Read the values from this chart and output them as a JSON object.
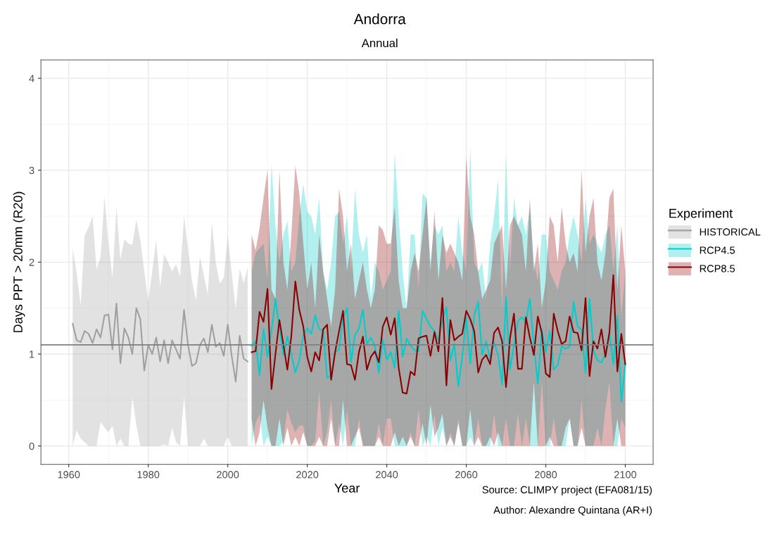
{
  "chart_data": {
    "type": "line",
    "title": "Andorra",
    "subtitle": "Annual",
    "xlabel": "Year",
    "ylabel": "Days PPT > 20mm (R20)",
    "legend_title": "Experiment",
    "legend": "right",
    "grid": true,
    "marker": "none",
    "line_style": "solid",
    "xlim": [
      1953,
      2107
    ],
    "xticks": [
      1960,
      1980,
      2000,
      2020,
      2040,
      2060,
      2080,
      2100
    ],
    "ylim": [
      -0.2,
      4.2
    ],
    "yticks": [
      0,
      1,
      2,
      3,
      4
    ],
    "ref_lines": [
      {
        "axis": "y",
        "value": 1.1,
        "color": "#7f7f7f"
      }
    ],
    "annotations": [
      "Source: CLIMPY project (EFA081/15)",
      "Author: Alexandre Quintana (AR+I)"
    ],
    "series": [
      {
        "name": "HISTORICAL",
        "color": "#a0a0a0",
        "x": [
          1961,
          1962,
          1963,
          1964,
          1965,
          1966,
          1967,
          1968,
          1969,
          1970,
          1971,
          1972,
          1973,
          1974,
          1975,
          1976,
          1977,
          1978,
          1979,
          1980,
          1981,
          1982,
          1983,
          1984,
          1985,
          1986,
          1987,
          1988,
          1989,
          1990,
          1991,
          1992,
          1993,
          1994,
          1995,
          1996,
          1997,
          1998,
          1999,
          2000,
          2001,
          2002,
          2003,
          2004,
          2005
        ],
        "values": [
          1.33,
          1.15,
          1.13,
          1.25,
          1.22,
          1.12,
          1.27,
          1.18,
          1.42,
          1.43,
          1.05,
          1.55,
          0.9,
          1.28,
          1.18,
          1.0,
          1.5,
          1.38,
          0.82,
          1.1,
          1.0,
          1.18,
          0.92,
          1.15,
          0.9,
          1.15,
          1.05,
          0.95,
          1.48,
          1.1,
          0.87,
          0.9,
          1.1,
          1.17,
          1.02,
          1.32,
          1.08,
          1.12,
          0.98,
          1.32,
          0.98,
          0.7,
          1.2,
          0.95,
          0.92
        ],
        "upper": [
          2.15,
          1.88,
          1.53,
          2.29,
          2.38,
          2.5,
          1.92,
          2.05,
          2.71,
          2.2,
          1.83,
          2.59,
          2.03,
          2.25,
          2.2,
          2.19,
          2.46,
          2.24,
          1.9,
          1.58,
          1.9,
          2.24,
          1.73,
          2.09,
          2.0,
          1.9,
          1.98,
          1.84,
          2.5,
          2.15,
          1.8,
          1.58,
          2.06,
          1.85,
          1.65,
          2.44,
          1.99,
          1.77,
          1.83,
          2.29,
          1.88,
          1.49,
          1.93,
          1.77,
          1.95
        ],
        "lower": [
          0,
          0.17,
          0.08,
          0.04,
          0,
          0,
          0,
          0.26,
          0.2,
          0.15,
          0.22,
          0,
          0.08,
          0,
          0,
          0.53,
          0.23,
          0,
          0,
          0,
          0,
          0,
          0,
          0.02,
          0,
          0.2,
          0.04,
          0,
          0.54,
          0,
          0,
          0,
          0,
          0.08,
          0,
          0,
          0,
          0,
          0,
          0.1,
          0,
          0,
          0,
          0,
          0
        ]
      },
      {
        "name": "RCP4.5",
        "color": "#00cdcd",
        "x": [
          2006,
          2007,
          2008,
          2009,
          2010,
          2011,
          2012,
          2013,
          2014,
          2015,
          2016,
          2017,
          2018,
          2019,
          2020,
          2021,
          2022,
          2023,
          2024,
          2025,
          2026,
          2027,
          2028,
          2029,
          2030,
          2031,
          2032,
          2033,
          2034,
          2035,
          2036,
          2037,
          2038,
          2039,
          2040,
          2041,
          2042,
          2043,
          2044,
          2045,
          2046,
          2047,
          2048,
          2049,
          2050,
          2051,
          2052,
          2053,
          2054,
          2055,
          2056,
          2057,
          2058,
          2059,
          2060,
          2061,
          2062,
          2063,
          2064,
          2065,
          2066,
          2067,
          2068,
          2069,
          2070,
          2071,
          2072,
          2073,
          2074,
          2075,
          2076,
          2077,
          2078,
          2079,
          2080,
          2081,
          2082,
          2083,
          2084,
          2085,
          2086,
          2087,
          2088,
          2089,
          2090,
          2091,
          2092,
          2093,
          2094,
          2095,
          2096,
          2097,
          2098,
          2099,
          2100
        ],
        "values": [
          1.09,
          1.14,
          0.77,
          1.27,
          0.97,
          1.26,
          1.6,
          1.28,
          0.99,
          1.19,
          1.0,
          0.8,
          0.93,
          1.21,
          1.28,
          1.22,
          1.42,
          1.27,
          1.26,
          0.74,
          0.77,
          1.02,
          1.05,
          1.39,
          1.5,
          0.91,
          1.21,
          1.28,
          1.48,
          1.11,
          1.18,
          1.09,
          0.8,
          1.16,
          0.94,
          1.02,
          0.85,
          1.47,
          0.97,
          1.17,
          1.09,
          1.04,
          1.03,
          1.47,
          1.38,
          1.3,
          1.25,
          1.15,
          1.37,
          1.51,
          0.93,
          1.11,
          0.65,
          0.97,
          1.4,
          0.9,
          1.42,
          1.57,
          0.99,
          1.14,
          0.95,
          1.13,
          0.99,
          0.67,
          1.62,
          0.83,
          1.1,
          1.36,
          1.4,
          1.35,
          1.6,
          1.09,
          0.68,
          1.27,
          1.02,
          1.25,
          0.83,
          0.88,
          1.08,
          1.06,
          1.08,
          1.57,
          1.3,
          1.27,
          0.8,
          1.6,
          1.04,
          0.93,
          0.91,
          1.0,
          1.23,
          0.89,
          1.42,
          0.48,
          0.89
        ],
        "upper": [
          1.9,
          2.1,
          2.15,
          2.2,
          1.8,
          3.07,
          2.4,
          2.0,
          2.3,
          2.45,
          1.9,
          2.0,
          2.5,
          2.85,
          2.55,
          2.5,
          2.3,
          2.7,
          1.9,
          1.7,
          2.0,
          2.5,
          2.55,
          2.2,
          2.5,
          1.9,
          2.8,
          2.3,
          2.1,
          2.3,
          1.6,
          2.0,
          1.9,
          1.7,
          1.8,
          1.9,
          3.2,
          2.5,
          1.9,
          1.5,
          2.3,
          2.3,
          1.7,
          2.75,
          2.7,
          2.0,
          2.4,
          2.3,
          2.4,
          1.9,
          2.0,
          1.9,
          2.5,
          2.1,
          1.9,
          3.25,
          2.0,
          1.9,
          2.0,
          1.6,
          2.2,
          2.5,
          2.9,
          1.5,
          3.2,
          1.9,
          2.7,
          2.4,
          2.5,
          2.3,
          2.6,
          2.0,
          1.8,
          2.3,
          2.3,
          1.9,
          1.8,
          1.7,
          1.9,
          2.0,
          2.3,
          2.5,
          2.3,
          2.0,
          2.7,
          2.2,
          2.3,
          2.2,
          2.1,
          2.3,
          2.4,
          1.9,
          2.4,
          1.4,
          1.9
        ],
        "lower": [
          0.0,
          0.25,
          0.35,
          0.0,
          0.1,
          0.0,
          0.0,
          0.0,
          0.05,
          0.4,
          0.25,
          0.15,
          0.22,
          0.22,
          0.0,
          0.0,
          0.05,
          0.6,
          0.0,
          0.15,
          0.5,
          0.0,
          0.25,
          0.0,
          0.4,
          0.0,
          0.0,
          0.3,
          0.0,
          0.0,
          0.0,
          0.0,
          0.25,
          0.0,
          0.3,
          0.3,
          0.0,
          0.0,
          0.0,
          0.0,
          0.15,
          0.0,
          0.4,
          0.0,
          0.1,
          0.0,
          0.35,
          0.0,
          0.2,
          0.0,
          0.15,
          0.0,
          0.3,
          0.0,
          0.0,
          0.1,
          0.0,
          0.3,
          0.0,
          0.0,
          0.0,
          0.35,
          0.0,
          0.0,
          0.3,
          0.0,
          0.0,
          0.35,
          0.0,
          0.3,
          0.0,
          0.0,
          0.0,
          0.7,
          0.0,
          0.0,
          0.3,
          0.0,
          0.0,
          0.0,
          0.3,
          0.0,
          0.0,
          0.5,
          0.0,
          0.0,
          0.0,
          0.2,
          0.0,
          0.4,
          0.7,
          0.0,
          0.0,
          0.3,
          0.2
        ]
      },
      {
        "name": "RCP8.5",
        "color": "#8b0000",
        "x": [
          2006,
          2007,
          2008,
          2009,
          2010,
          2011,
          2012,
          2013,
          2014,
          2015,
          2016,
          2017,
          2018,
          2019,
          2020,
          2021,
          2022,
          2023,
          2024,
          2025,
          2026,
          2027,
          2028,
          2029,
          2030,
          2031,
          2032,
          2033,
          2034,
          2035,
          2036,
          2037,
          2038,
          2039,
          2040,
          2041,
          2042,
          2043,
          2044,
          2045,
          2046,
          2047,
          2048,
          2049,
          2050,
          2051,
          2052,
          2053,
          2054,
          2055,
          2056,
          2057,
          2058,
          2059,
          2060,
          2061,
          2062,
          2063,
          2064,
          2065,
          2066,
          2067,
          2068,
          2069,
          2070,
          2071,
          2072,
          2073,
          2074,
          2075,
          2076,
          2077,
          2078,
          2079,
          2080,
          2081,
          2082,
          2083,
          2084,
          2085,
          2086,
          2087,
          2088,
          2089,
          2090,
          2091,
          2092,
          2093,
          2094,
          2095,
          2096,
          2097,
          2098,
          2099,
          2100
        ],
        "values": [
          1.02,
          1.03,
          1.46,
          1.35,
          1.71,
          0.62,
          1.0,
          1.37,
          1.1,
          0.83,
          1.2,
          1.79,
          1.48,
          1.3,
          0.97,
          0.81,
          1.02,
          0.93,
          1.27,
          1.32,
          0.72,
          1.02,
          1.25,
          1.47,
          0.89,
          0.88,
          0.72,
          1.02,
          1.19,
          0.83,
          0.97,
          1.03,
          0.91,
          1.3,
          1.4,
          1.21,
          1.39,
          0.85,
          0.58,
          0.57,
          0.81,
          0.77,
          1.17,
          1.19,
          1.2,
          0.98,
          1.24,
          1.03,
          1.61,
          0.66,
          1.37,
          1.15,
          1.19,
          1.22,
          1.47,
          1.38,
          1.25,
          0.8,
          0.94,
          0.99,
          0.89,
          1.23,
          1.29,
          1.14,
          0.64,
          1.17,
          1.44,
          0.84,
          0.84,
          1.4,
          1.18,
          0.99,
          1.41,
          1.23,
          0.79,
          0.75,
          1.44,
          1.25,
          1.11,
          1.14,
          1.41,
          1.24,
          1.23,
          1.04,
          1.61,
          0.76,
          1.14,
          1.06,
          1.27,
          0.97,
          1.23,
          1.86,
          0.81,
          1.22,
          0.89
        ],
        "upper": [
          2.3,
          2.13,
          2.37,
          2.7,
          3.0,
          1.7,
          1.6,
          3.0,
          2.0,
          1.7,
          2.3,
          3.05,
          2.75,
          2.2,
          1.7,
          2.0,
          1.5,
          2.3,
          1.9,
          1.6,
          1.3,
          1.7,
          2.8,
          2.5,
          1.9,
          2.2,
          1.6,
          1.8,
          2.0,
          1.7,
          1.5,
          1.7,
          2.4,
          2.35,
          2.2,
          2.2,
          2.6,
          1.8,
          1.5,
          1.5,
          1.9,
          2.1,
          1.9,
          2.3,
          2.7,
          1.9,
          2.55,
          1.8,
          2.3,
          2.1,
          2.2,
          2.1,
          2.0,
          1.8,
          3.15,
          2.5,
          2.3,
          1.9,
          1.6,
          1.7,
          1.8,
          2.2,
          2.3,
          2.4,
          1.7,
          2.4,
          2.5,
          2.4,
          2.3,
          1.9,
          2.7,
          1.9,
          2.2,
          1.5,
          1.8,
          2.5,
          2.4,
          2.0,
          2.6,
          2.2,
          2.0,
          2.1,
          1.9,
          3.0,
          2.1,
          2.5,
          2.7,
          2.0,
          1.8,
          2.1,
          2.7,
          2.8,
          1.7,
          2.4,
          1.9
        ],
        "lower": [
          0.3,
          0.0,
          0.15,
          0.5,
          0.2,
          0.0,
          0.0,
          0.3,
          0.0,
          0.2,
          0.0,
          0.1,
          0.0,
          0.15,
          0.0,
          0.0,
          0.0,
          0.1,
          0.0,
          0.0,
          0.3,
          0.0,
          0.0,
          0.5,
          0.0,
          0.0,
          0.1,
          0.2,
          0.0,
          0.0,
          0.0,
          0.0,
          0.1,
          0.0,
          0.0,
          0.0,
          0.15,
          0.0,
          0.1,
          0.0,
          0.1,
          0.0,
          0.0,
          0.25,
          0.0,
          0.45,
          0.1,
          0.2,
          0.35,
          0.0,
          0.1,
          0.0,
          0.25,
          0.0,
          0.0,
          0.4,
          0.0,
          0.1,
          0.0,
          0.0,
          0.1,
          0.0,
          0.15,
          0.0,
          0.0,
          0.0,
          0.0,
          0.0,
          0.0,
          0.0,
          0.0,
          0.7,
          0.0,
          0.0,
          0.0,
          0.1,
          0.0,
          0.0,
          0.0,
          0.2,
          0.3,
          0.0,
          0.0,
          0.2,
          0.0,
          0.0,
          0.0,
          0.0,
          0.0,
          0.0,
          0.0,
          0.0,
          0.3,
          0.0,
          0.0
        ]
      }
    ]
  }
}
